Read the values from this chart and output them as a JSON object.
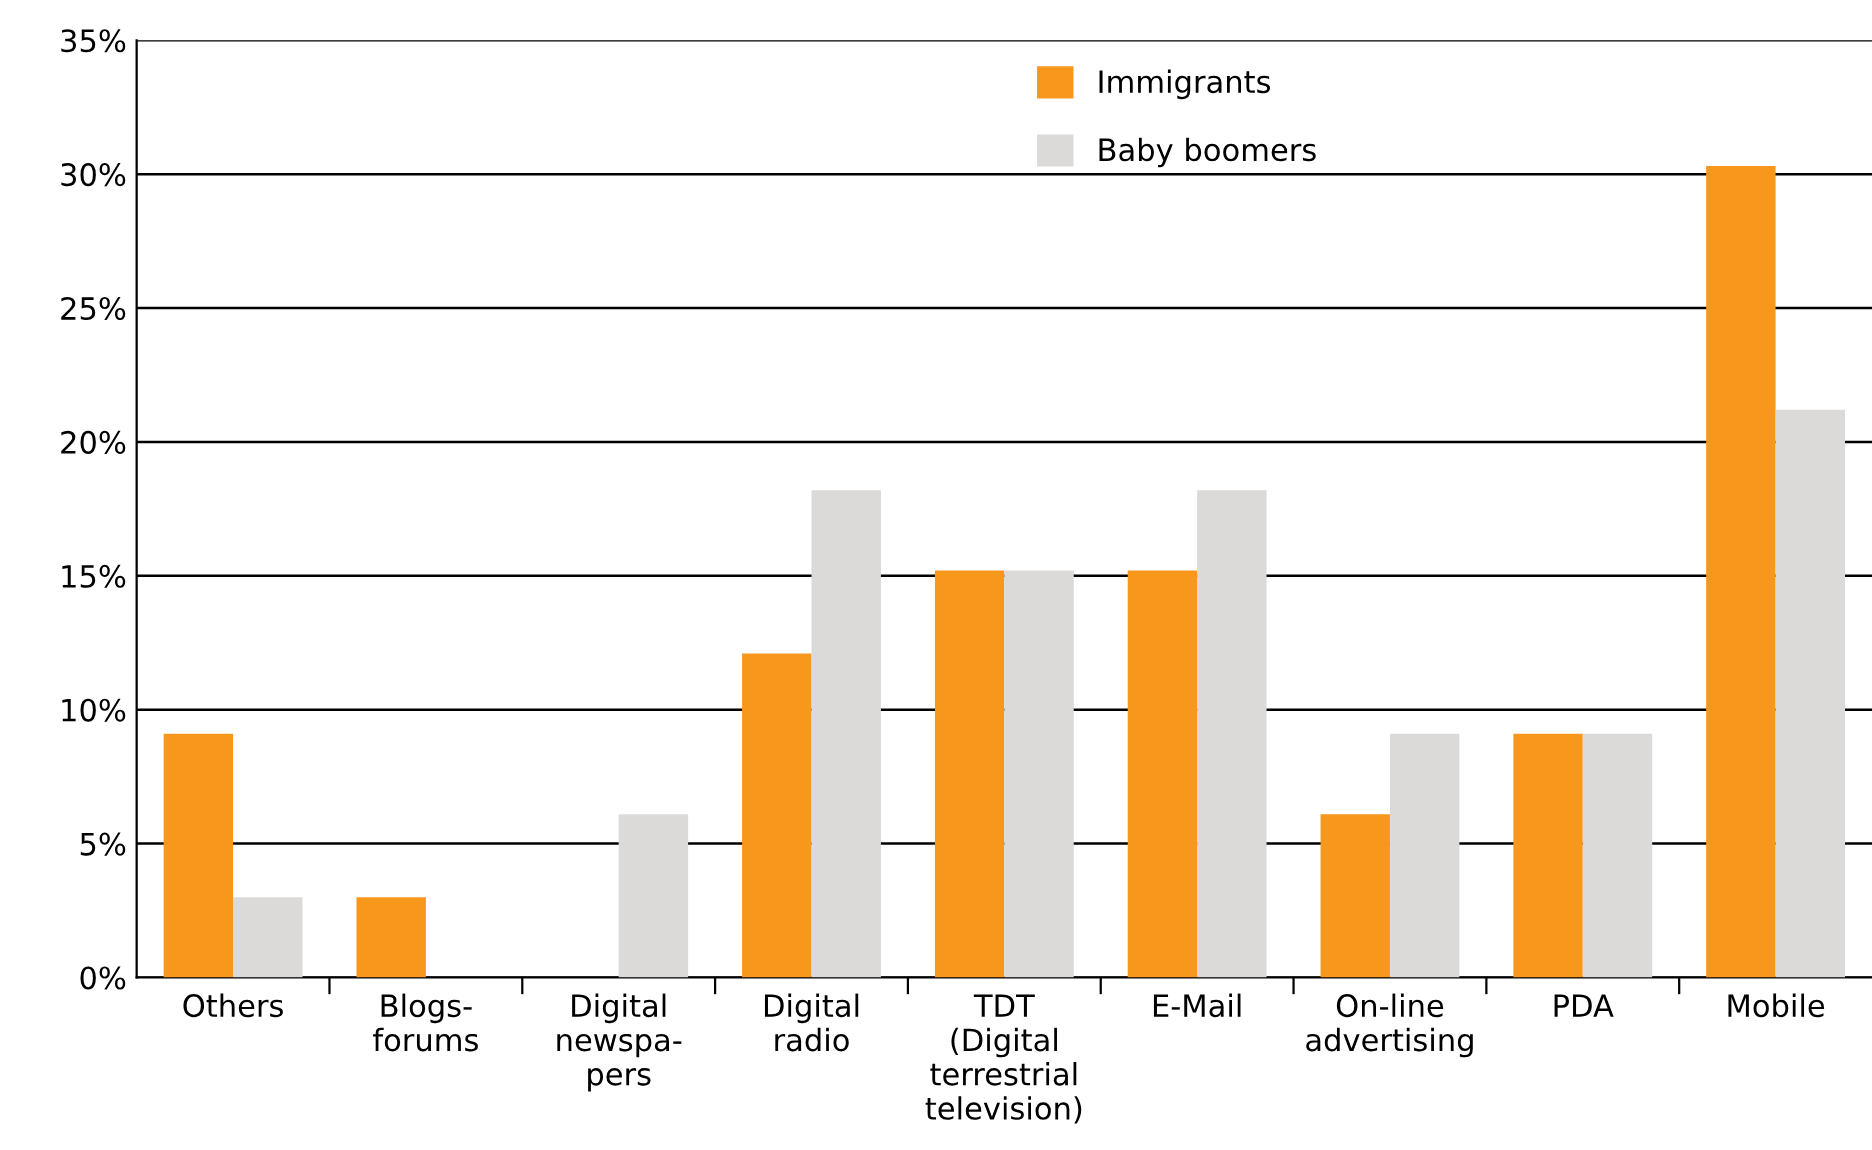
{
  "chart_data": {
    "type": "bar",
    "categories": [
      "Others",
      "Blogs-\nforums",
      "Digital\nnewspa-\npers",
      "Digital\nradio",
      "TDT\n(Digital\nterrestrial\ntelevision)",
      "E-Mail",
      "On-line\nadvertising",
      "PDA",
      "Mobile"
    ],
    "series": [
      {
        "name": "Immigrants",
        "color": "#f7971c",
        "values": [
          9.1,
          3.0,
          0,
          12.1,
          15.2,
          15.2,
          6.1,
          9.1,
          30.3
        ]
      },
      {
        "name": "Baby boomers",
        "color": "#dcdad8",
        "values": [
          3.0,
          0,
          6.1,
          18.2,
          15.2,
          18.2,
          9.1,
          9.1,
          21.2
        ]
      }
    ],
    "ylim": [
      0,
      35
    ],
    "yticks": [
      {
        "value": 0,
        "label": "0%"
      },
      {
        "value": 5,
        "label": "5%"
      },
      {
        "value": 10,
        "label": "10%"
      },
      {
        "value": 15,
        "label": "15%"
      },
      {
        "value": 20,
        "label": "20%"
      },
      {
        "value": 25,
        "label": "25%"
      },
      {
        "value": 30,
        "label": "30%"
      },
      {
        "value": 35,
        "label": "35%"
      }
    ],
    "grid": "y",
    "legend": "top"
  }
}
